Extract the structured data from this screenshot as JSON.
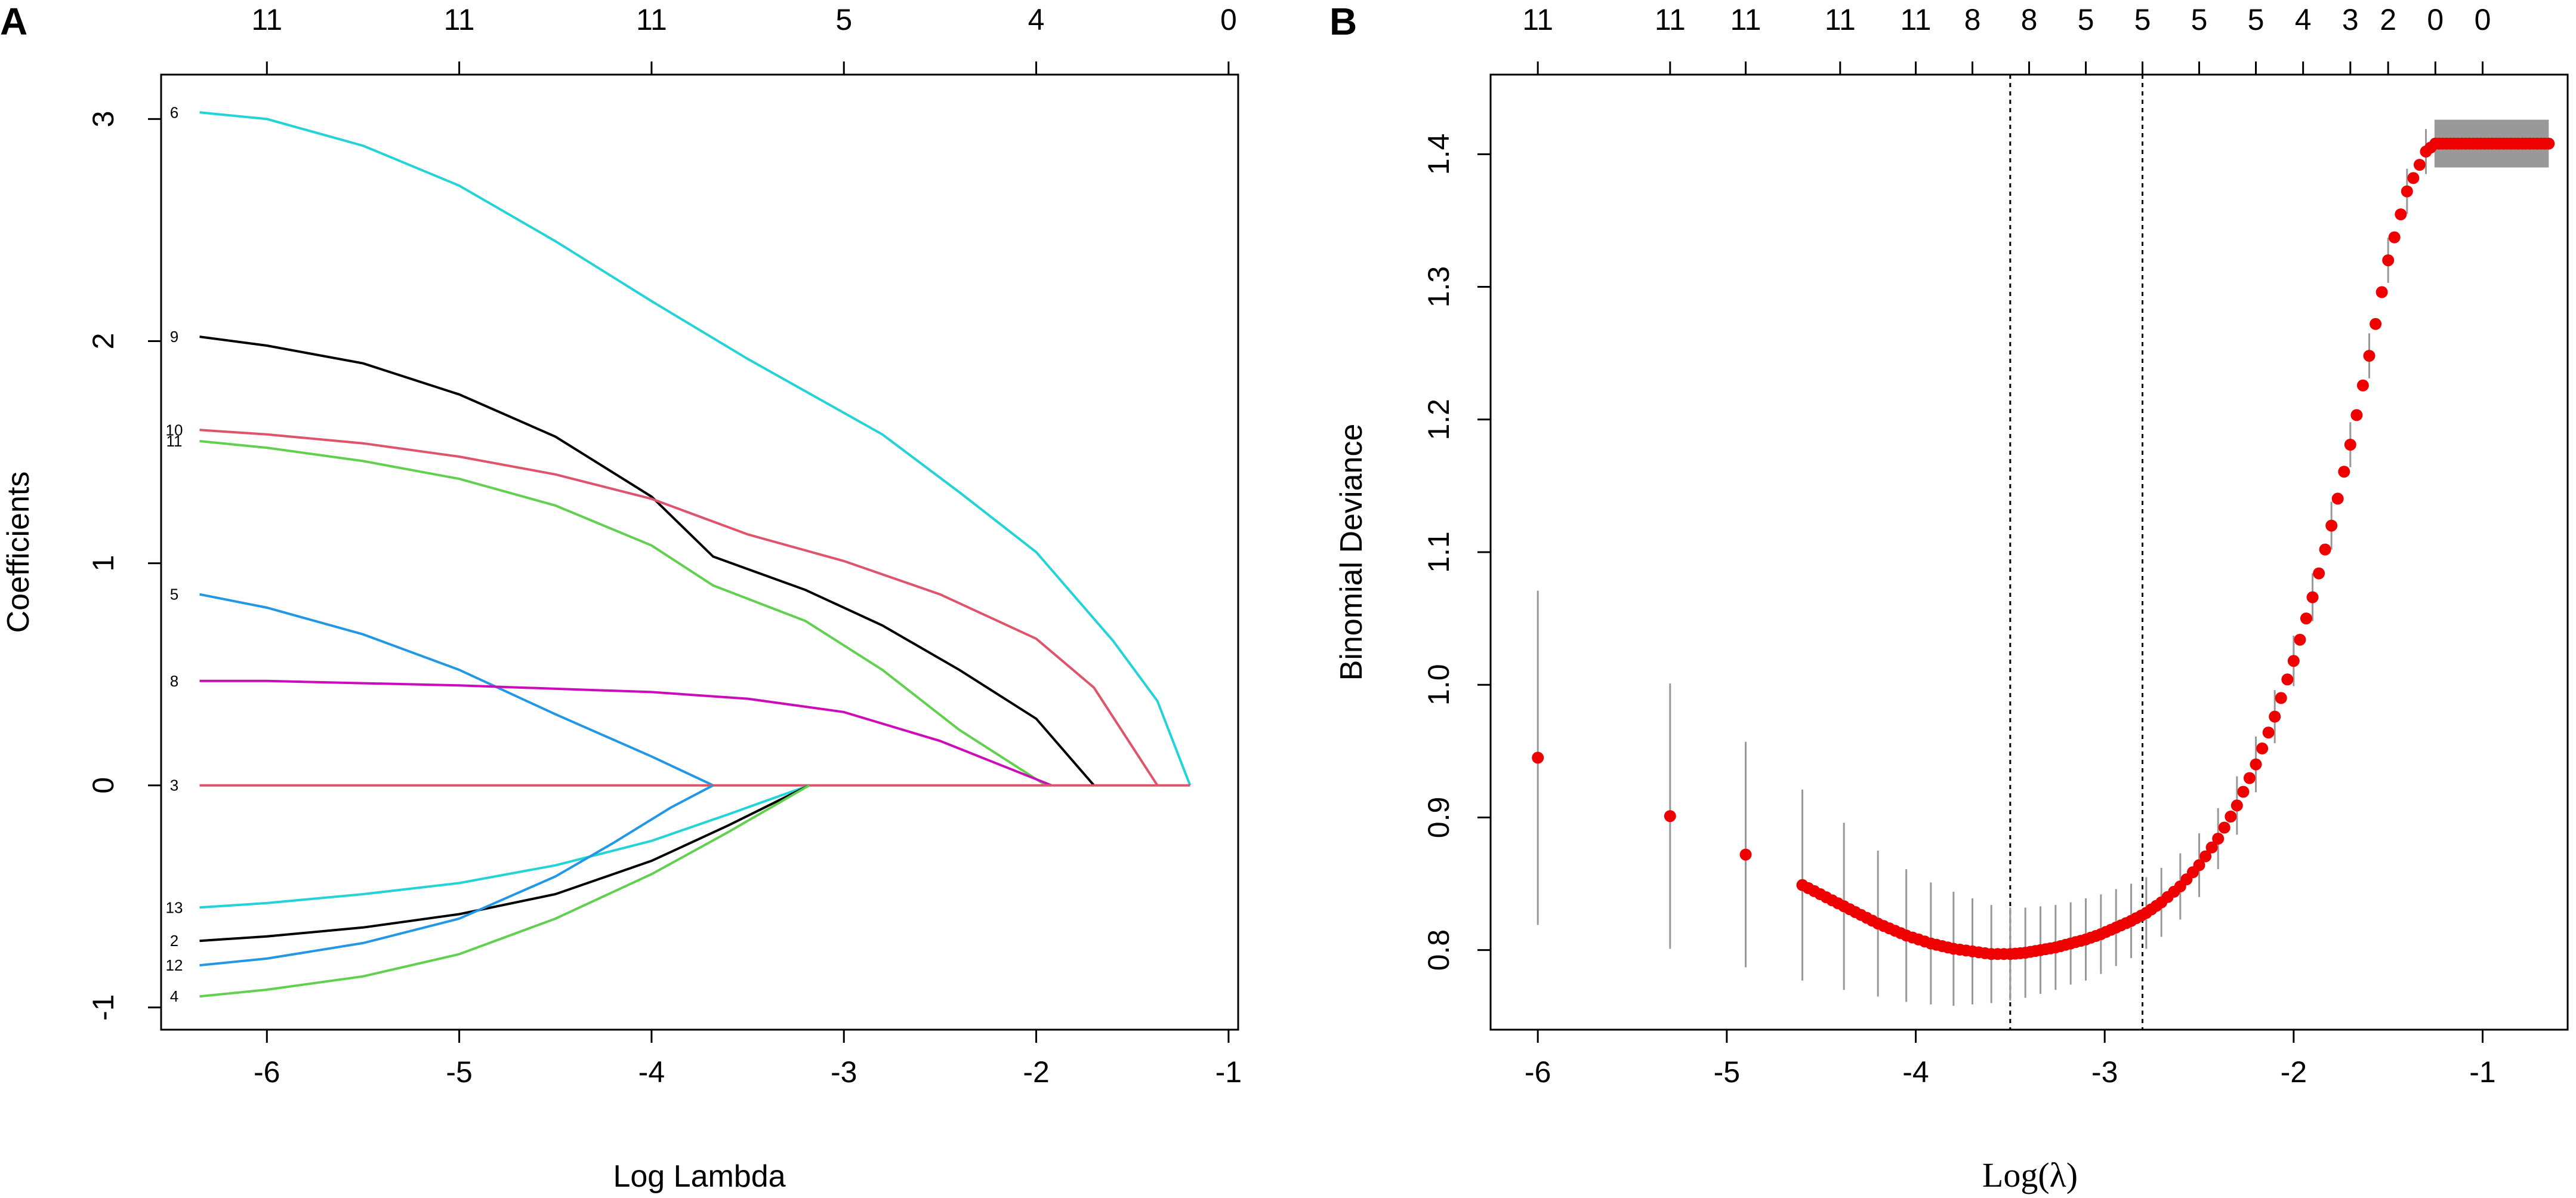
{
  "chart_data": [
    {
      "panel_label": "A",
      "type": "line",
      "title": "",
      "xlabel": "Log Lambda",
      "ylabel": "Coefficients",
      "xlim": [
        -6.55,
        -0.95
      ],
      "ylim": [
        -1.1,
        3.2
      ],
      "x_ticks": [
        -6,
        -5,
        -4,
        -3,
        -2,
        -1
      ],
      "x_tick_labels": [
        "-6",
        "-5",
        "-4",
        "-3",
        "-2",
        "-1"
      ],
      "y_ticks": [
        -1,
        0,
        1,
        2,
        3
      ],
      "y_tick_labels": [
        "-1",
        "0",
        "1",
        "2",
        "3"
      ],
      "top_axis_ticks": [
        -6,
        -5,
        -4,
        -3,
        -2,
        -1
      ],
      "top_axis_labels": [
        "11",
        "11",
        "11",
        "5",
        "4",
        "0"
      ],
      "series": [
        {
          "name": "6",
          "label": "6",
          "color": "#22D3D8",
          "x": [
            -6.35,
            -6,
            -5.5,
            -5,
            -4.5,
            -4,
            -3.5,
            -3.15,
            -2.8,
            -2.4,
            -2.0,
            -1.6,
            -1.37,
            -1.2
          ],
          "values": [
            3.03,
            3.0,
            2.88,
            2.7,
            2.45,
            2.18,
            1.92,
            1.75,
            1.58,
            1.32,
            1.05,
            0.65,
            0.38,
            0.0
          ]
        },
        {
          "name": "9",
          "label": "9",
          "color": "#000000",
          "x": [
            -6.35,
            -6,
            -5.5,
            -5,
            -4.5,
            -4,
            -3.68,
            -3.2,
            -2.8,
            -2.4,
            -2.0,
            -1.7
          ],
          "values": [
            2.02,
            1.98,
            1.9,
            1.76,
            1.57,
            1.3,
            1.03,
            0.88,
            0.72,
            0.52,
            0.3,
            0.0
          ]
        },
        {
          "name": "10",
          "label": "10",
          "color": "#DF536B",
          "x": [
            -6.35,
            -6,
            -5.5,
            -5,
            -4.5,
            -4,
            -3.5,
            -3.0,
            -2.5,
            -2.0,
            -1.7,
            -1.37
          ],
          "values": [
            1.6,
            1.58,
            1.54,
            1.48,
            1.4,
            1.29,
            1.13,
            1.01,
            0.86,
            0.66,
            0.44,
            0.0
          ]
        },
        {
          "name": "11",
          "label": "11",
          "color": "#61D04F",
          "x": [
            -6.35,
            -6,
            -5.5,
            -5,
            -4.5,
            -4,
            -3.68,
            -3.2,
            -2.8,
            -2.4,
            -1.95
          ],
          "values": [
            1.55,
            1.52,
            1.46,
            1.38,
            1.26,
            1.08,
            0.9,
            0.74,
            0.52,
            0.25,
            0.0
          ]
        },
        {
          "name": "5",
          "label": "5",
          "color": "#2297E6",
          "x": [
            -6.35,
            -6,
            -5.5,
            -5,
            -4.5,
            -4,
            -3.68
          ],
          "values": [
            0.86,
            0.8,
            0.68,
            0.52,
            0.32,
            0.13,
            0.0
          ]
        },
        {
          "name": "8",
          "label": "8",
          "color": "#CD0BBC",
          "x": [
            -6.35,
            -6,
            -5,
            -4,
            -3.5,
            -3.0,
            -2.5,
            -1.92
          ],
          "values": [
            0.47,
            0.47,
            0.45,
            0.42,
            0.39,
            0.33,
            0.2,
            0.0
          ]
        },
        {
          "name": "3",
          "label": "3",
          "color": "#DF536B",
          "x": [
            -6.35,
            -4,
            -2,
            -1.2
          ],
          "values": [
            0.0,
            0.0,
            0.0,
            0.0
          ]
        },
        {
          "name": "13",
          "label": "13",
          "color": "#22D3D8",
          "x": [
            -6.35,
            -6,
            -5.5,
            -5,
            -4.5,
            -4,
            -3.6,
            -3.18
          ],
          "values": [
            -0.55,
            -0.53,
            -0.49,
            -0.44,
            -0.36,
            -0.25,
            -0.13,
            0.0
          ]
        },
        {
          "name": "2",
          "label": "2",
          "color": "#000000",
          "x": [
            -6.35,
            -6,
            -5.5,
            -5,
            -4.5,
            -4,
            -3.6,
            -3.18
          ],
          "values": [
            -0.7,
            -0.68,
            -0.64,
            -0.58,
            -0.49,
            -0.34,
            -0.18,
            0.0
          ]
        },
        {
          "name": "12",
          "label": "12",
          "color": "#2297E6",
          "x": [
            -6.35,
            -6,
            -5.5,
            -5,
            -4.5,
            -4.2,
            -3.9,
            -3.68
          ],
          "values": [
            -0.81,
            -0.78,
            -0.71,
            -0.6,
            -0.41,
            -0.26,
            -0.1,
            0.0
          ]
        },
        {
          "name": "4",
          "label": "4",
          "color": "#61D04F",
          "x": [
            -6.35,
            -6,
            -5.5,
            -5,
            -4.5,
            -4,
            -3.6,
            -3.18
          ],
          "values": [
            -0.95,
            -0.92,
            -0.86,
            -0.76,
            -0.6,
            -0.4,
            -0.21,
            0.0
          ]
        }
      ]
    },
    {
      "panel_label": "B",
      "type": "scatter",
      "title": "",
      "xlabel": "Log(λ)",
      "ylabel": "Binomial Deviance",
      "xlim": [
        -6.25,
        -0.55
      ],
      "ylim": [
        0.74,
        1.46
      ],
      "x_ticks": [
        -6,
        -5,
        -4,
        -3,
        -2,
        -1
      ],
      "x_tick_labels": [
        "-6",
        "-5",
        "-4",
        "-3",
        "-2",
        "-1"
      ],
      "y_ticks": [
        0.8,
        0.9,
        1.0,
        1.1,
        1.2,
        1.3,
        1.4
      ],
      "y_tick_labels": [
        "0.8",
        "0.9",
        "1.0",
        "1.1",
        "1.2",
        "1.3",
        "1.4"
      ],
      "top_axis_ticks": [
        -6.0,
        -5.3,
        -4.9,
        -4.4,
        -4.0,
        -3.7,
        -3.4,
        -3.1,
        -2.8,
        -2.5,
        -2.2,
        -1.95,
        -1.7,
        -1.5,
        -1.25,
        -1.0
      ],
      "top_axis_labels": [
        "11",
        "11",
        "11",
        "11",
        "11",
        "8",
        "8",
        "5",
        "5",
        "5",
        "5",
        "4",
        "3",
        "2",
        "0",
        "0"
      ],
      "vlines": [
        -3.5,
        -2.8
      ],
      "point_color": "#EE0000",
      "error_bar_color": "#999999",
      "x": [
        -6.0,
        -5.3,
        -4.9,
        -4.6,
        -4.38,
        -4.2,
        -4.05,
        -3.92,
        -3.8,
        -3.7,
        -3.6,
        -3.5,
        -3.42,
        -3.34,
        -3.26,
        -3.18,
        -3.1,
        -3.02,
        -2.94,
        -2.86,
        -2.78,
        -2.7,
        -2.6,
        -2.5,
        -2.4,
        -2.3,
        -2.2,
        -2.1,
        -2.0,
        -1.9,
        -1.8,
        -1.7,
        -1.6,
        -1.5,
        -1.4,
        -1.3,
        -1.25
      ],
      "values": [
        0.945,
        0.901,
        0.872,
        0.849,
        0.833,
        0.82,
        0.811,
        0.805,
        0.801,
        0.799,
        0.797,
        0.797,
        0.798,
        0.8,
        0.802,
        0.805,
        0.808,
        0.812,
        0.817,
        0.822,
        0.828,
        0.836,
        0.848,
        0.864,
        0.884,
        0.909,
        0.94,
        0.976,
        1.018,
        1.066,
        1.12,
        1.181,
        1.248,
        1.32,
        1.372,
        1.402,
        1.408
      ],
      "se": [
        0.126,
        0.1,
        0.085,
        0.072,
        0.063,
        0.055,
        0.05,
        0.046,
        0.043,
        0.04,
        0.037,
        0.035,
        0.034,
        0.033,
        0.032,
        0.031,
        0.031,
        0.03,
        0.029,
        0.028,
        0.027,
        0.026,
        0.025,
        0.024,
        0.023,
        0.022,
        0.021,
        0.02,
        0.019,
        0.018,
        0.018,
        0.017,
        0.017,
        0.017,
        0.017,
        0.017,
        0.018
      ],
      "plateau": {
        "x_start": -1.25,
        "x_end": -0.65,
        "value": 1.408,
        "se": 0.018
      }
    }
  ]
}
